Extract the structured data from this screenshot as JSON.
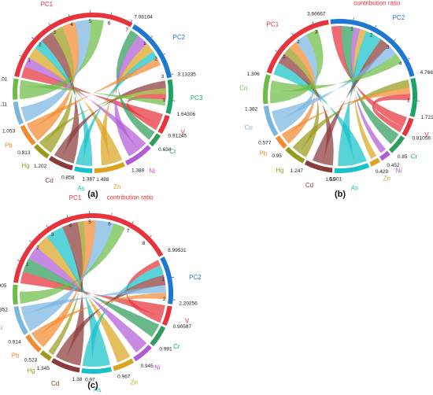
{
  "figure": {
    "background": "#ffffff"
  },
  "chart_data": [
    {
      "type": "chord",
      "panel": "(a)",
      "title": "contribution ratio",
      "segments": [
        {
          "name": "PC1",
          "value": 7.08104,
          "color": "#e8323c",
          "kind": "component"
        },
        {
          "name": "PC2",
          "value": 3.13235,
          "color": "#1f77d4",
          "kind": "component"
        },
        {
          "name": "PC3",
          "value": 1.64306,
          "color": "#1aa566",
          "kind": "component"
        },
        {
          "name": "V",
          "value": 0.91245,
          "color": "#e8323c",
          "kind": "element"
        },
        {
          "name": "Cr",
          "value": 0.634,
          "color": "#2e9c5a",
          "kind": "element"
        },
        {
          "name": "Ni",
          "value": 1.389,
          "color": "#b25bd6",
          "kind": "element"
        },
        {
          "name": "Zn",
          "value": 1.488,
          "color": "#d9a521",
          "kind": "element"
        },
        {
          "name": "As",
          "value": 0.858,
          "color": "#17c2c9",
          "kind": "element"
        },
        {
          "name": "Cd",
          "value": 1.202,
          "color": "#8c3b3b",
          "kind": "element"
        },
        {
          "name": "Hg",
          "value": 0.813,
          "color": "#9a9a1c",
          "kind": "element"
        },
        {
          "name": "Pb",
          "value": 1.053,
          "color": "#f28b30",
          "kind": "element"
        },
        {
          "name": "Cu",
          "value": 1.11,
          "color": "#7ab6e0",
          "kind": "element"
        },
        {
          "name": "Co",
          "value": 1.01,
          "color": "#6cbd45",
          "kind": "element"
        }
      ],
      "extra_value_labels": [
        "1.387"
      ],
      "flows": [
        {
          "source": "PC1",
          "target": "V",
          "value": 0.6
        },
        {
          "source": "PC1",
          "target": "Ni",
          "value": 0.5
        },
        {
          "source": "PC1",
          "target": "Zn",
          "value": 0.6
        },
        {
          "source": "PC1",
          "target": "As",
          "value": 0.5
        },
        {
          "source": "PC1",
          "target": "Cd",
          "value": 0.7
        },
        {
          "source": "PC1",
          "target": "Hg",
          "value": 0.6
        },
        {
          "source": "PC1",
          "target": "Pb",
          "value": 0.7
        },
        {
          "source": "PC1",
          "target": "Cu",
          "value": 0.8
        },
        {
          "source": "PC1",
          "target": "Co",
          "value": 0.7
        },
        {
          "source": "PC2",
          "target": "Cr",
          "value": 0.5
        },
        {
          "source": "PC2",
          "target": "Ni",
          "value": 0.6
        },
        {
          "source": "PC2",
          "target": "Zn",
          "value": 0.5
        },
        {
          "source": "PC2",
          "target": "As",
          "value": 0.4
        },
        {
          "source": "PC2",
          "target": "Pb",
          "value": 0.4
        },
        {
          "source": "PC3",
          "target": "Cd",
          "value": 0.4
        },
        {
          "source": "PC3",
          "target": "Hg",
          "value": 0.3
        },
        {
          "source": "PC3",
          "target": "V",
          "value": 0.3
        },
        {
          "source": "PC3",
          "target": "Co",
          "value": 0.3
        }
      ]
    },
    {
      "type": "chord",
      "panel": "(b)",
      "title": "contribution ratio",
      "segments": [
        {
          "name": "PC1",
          "value": 3.66667,
          "color": "#e8323c",
          "kind": "component"
        },
        {
          "name": "PC2",
          "value": 4.76633,
          "color": "#1f77d4",
          "kind": "component"
        },
        {
          "name": "PC3",
          "value": 1.72156,
          "color": "#1aa566",
          "kind": "component"
        },
        {
          "name": "V",
          "value": 0.81056,
          "color": "#e8323c",
          "kind": "element"
        },
        {
          "name": "Cr",
          "value": 0.85,
          "color": "#2e9c5a",
          "kind": "element"
        },
        {
          "name": "Ni",
          "value": 0.452,
          "color": "#b25bd6",
          "kind": "element"
        },
        {
          "name": "Zn",
          "value": 0.429,
          "color": "#d9a521",
          "kind": "element"
        },
        {
          "name": "As",
          "value": 1.55,
          "color": "#17c2c9",
          "kind": "element"
        },
        {
          "name": "Cd",
          "value": 1.247,
          "color": "#8c3b3b",
          "kind": "element"
        },
        {
          "name": "Hg",
          "value": 0.95,
          "color": "#9a9a1c",
          "kind": "element"
        },
        {
          "name": "Pb",
          "value": 0.577,
          "color": "#f28b30",
          "kind": "element"
        },
        {
          "name": "Cu",
          "value": 1.382,
          "color": "#7ab6e0",
          "kind": "element"
        },
        {
          "name": "Co",
          "value": 1.306,
          "color": "#6cbd45",
          "kind": "element"
        }
      ],
      "extra_value_labels": [
        "0.001"
      ],
      "flows": [
        {
          "source": "PC1",
          "target": "As",
          "value": 0.6
        },
        {
          "source": "PC1",
          "target": "Cd",
          "value": 0.5
        },
        {
          "source": "PC1",
          "target": "Hg",
          "value": 0.4
        },
        {
          "source": "PC1",
          "target": "Pb",
          "value": 0.4
        },
        {
          "source": "PC1",
          "target": "Cu",
          "value": 0.6
        },
        {
          "source": "PC1",
          "target": "Co",
          "value": 0.6
        },
        {
          "source": "PC2",
          "target": "V",
          "value": 0.5
        },
        {
          "source": "PC2",
          "target": "Cr",
          "value": 0.6
        },
        {
          "source": "PC2",
          "target": "Ni",
          "value": 0.3
        },
        {
          "source": "PC2",
          "target": "Zn",
          "value": 0.3
        },
        {
          "source": "PC2",
          "target": "As",
          "value": 0.8
        },
        {
          "source": "PC2",
          "target": "Cd",
          "value": 0.5
        },
        {
          "source": "PC2",
          "target": "Cu",
          "value": 0.5
        },
        {
          "source": "PC2",
          "target": "Co",
          "value": 0.5
        },
        {
          "source": "PC3",
          "target": "Hg",
          "value": 0.4
        },
        {
          "source": "PC3",
          "target": "Pb",
          "value": 0.3
        },
        {
          "source": "PC3",
          "target": "V",
          "value": 0.3
        }
      ]
    },
    {
      "type": "chord",
      "panel": "(c)",
      "title": "contribution ratio",
      "segments": [
        {
          "name": "PC1",
          "value": 8.99531,
          "color": "#e8323c",
          "kind": "component"
        },
        {
          "name": "PC2",
          "value": 2.20256,
          "color": "#1f77d4",
          "kind": "component"
        },
        {
          "name": "V",
          "value": 0.90587,
          "color": "#e8323c",
          "kind": "element"
        },
        {
          "name": "Cr",
          "value": 0.991,
          "color": "#2e9c5a",
          "kind": "element"
        },
        {
          "name": "Ni",
          "value": 0.945,
          "color": "#b25bd6",
          "kind": "element"
        },
        {
          "name": "Zn",
          "value": 0.967,
          "color": "#d9a521",
          "kind": "element"
        },
        {
          "name": "As",
          "value": 1.38,
          "color": "#17c2c9",
          "kind": "element"
        },
        {
          "name": "Cd",
          "value": 1.345,
          "color": "#8c3b3b",
          "kind": "element"
        },
        {
          "name": "Hg",
          "value": 0.523,
          "color": "#9a9a1c",
          "kind": "element"
        },
        {
          "name": "Pb",
          "value": 0.914,
          "color": "#f28b30",
          "kind": "element"
        },
        {
          "name": "Cu",
          "value": 1.352,
          "color": "#7ab6e0",
          "kind": "element"
        },
        {
          "name": "Co",
          "value": 0.905,
          "color": "#6cbd45",
          "kind": "element"
        }
      ],
      "extra_value_labels": [
        "0.97"
      ],
      "flows": [
        {
          "source": "PC1",
          "target": "V",
          "value": 0.6
        },
        {
          "source": "PC1",
          "target": "Cr",
          "value": 0.7
        },
        {
          "source": "PC1",
          "target": "Ni",
          "value": 0.7
        },
        {
          "source": "PC1",
          "target": "Zn",
          "value": 0.7
        },
        {
          "source": "PC1",
          "target": "As",
          "value": 0.9
        },
        {
          "source": "PC1",
          "target": "Cd",
          "value": 0.8
        },
        {
          "source": "PC1",
          "target": "Hg",
          "value": 0.3
        },
        {
          "source": "PC1",
          "target": "Pb",
          "value": 0.6
        },
        {
          "source": "PC1",
          "target": "Cu",
          "value": 0.9
        },
        {
          "source": "PC1",
          "target": "Co",
          "value": 0.6
        },
        {
          "source": "PC2",
          "target": "V",
          "value": 0.3
        },
        {
          "source": "PC2",
          "target": "As",
          "value": 0.5
        },
        {
          "source": "PC2",
          "target": "Cd",
          "value": 0.5
        },
        {
          "source": "PC2",
          "target": "Cu",
          "value": 0.4
        },
        {
          "source": "PC2",
          "target": "Pb",
          "value": 0.3
        }
      ]
    }
  ]
}
